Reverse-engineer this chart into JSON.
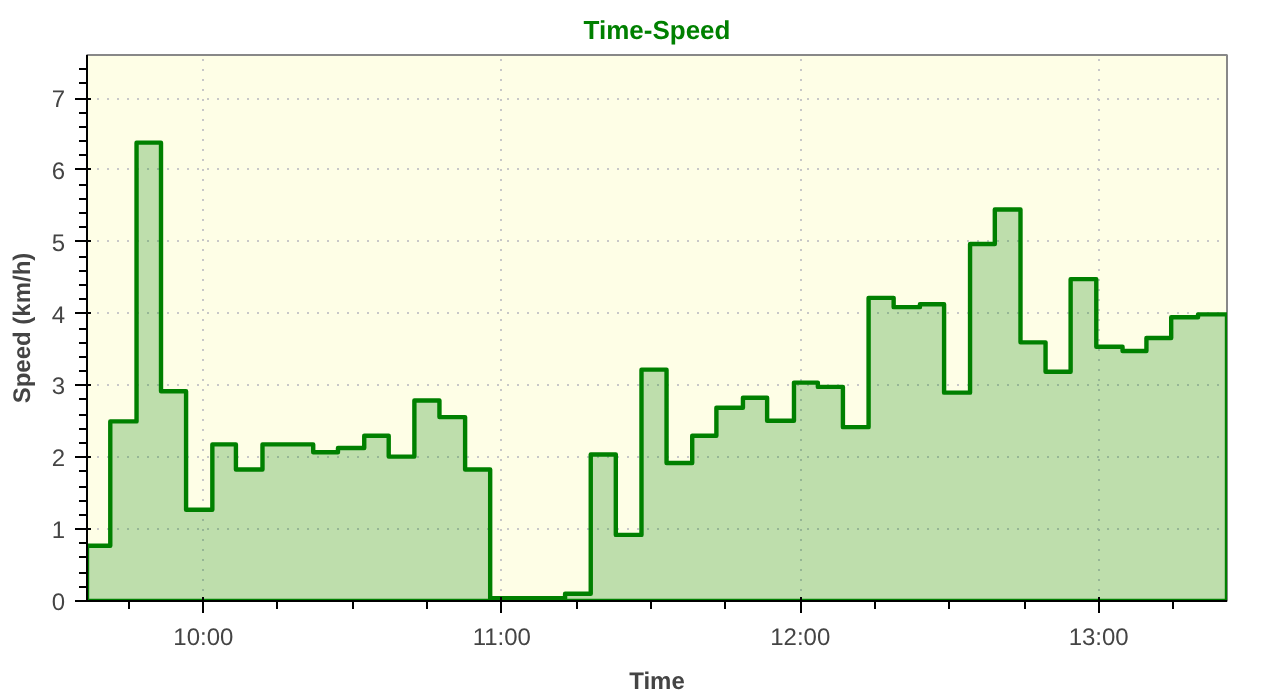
{
  "chart_data": {
    "type": "area",
    "title": "Time-Speed",
    "xlabel": "Time",
    "ylabel": "Speed (km/h)",
    "x": [
      9.61,
      9.688,
      9.776,
      9.858,
      9.942,
      10.03,
      10.109,
      10.198,
      10.368,
      10.451,
      10.539,
      10.621,
      10.707,
      10.791,
      10.877,
      10.961,
      11.212,
      11.298,
      11.382,
      11.468,
      11.552,
      11.638,
      11.719,
      11.808,
      11.889,
      11.979,
      12.059,
      12.143,
      12.229,
      12.313,
      12.401,
      12.482,
      12.569,
      12.652,
      12.738,
      12.822,
      12.906,
      12.992,
      13.08,
      13.16,
      13.243,
      13.333,
      13.43
    ],
    "series": [
      {
        "color": "#008000",
        "values": [
          0.77,
          2.5,
          6.38,
          2.92,
          1.27,
          2.18,
          1.83,
          2.18,
          2.07,
          2.13,
          2.3,
          2.01,
          2.79,
          2.56,
          1.83,
          0.04,
          0.1,
          2.04,
          0.92,
          3.22,
          1.92,
          2.3,
          2.69,
          2.83,
          2.51,
          3.04,
          2.98,
          2.42,
          4.22,
          4.09,
          4.13,
          2.9,
          4.97,
          5.45,
          3.6,
          3.19,
          4.48,
          3.54,
          3.48,
          3.66,
          3.95,
          3.99,
          3.99
        ]
      }
    ],
    "xlim": [
      9.61,
      13.43
    ],
    "ylim": [
      0,
      7.6
    ],
    "xticks": [
      {
        "value": 10,
        "label": "10:00"
      },
      {
        "value": 11,
        "label": "11:00"
      },
      {
        "value": 12,
        "label": "12:00"
      },
      {
        "value": 13,
        "label": "13:00"
      }
    ],
    "yticks": [
      0,
      1,
      2,
      3,
      4,
      5,
      6,
      7
    ],
    "grid": true
  }
}
